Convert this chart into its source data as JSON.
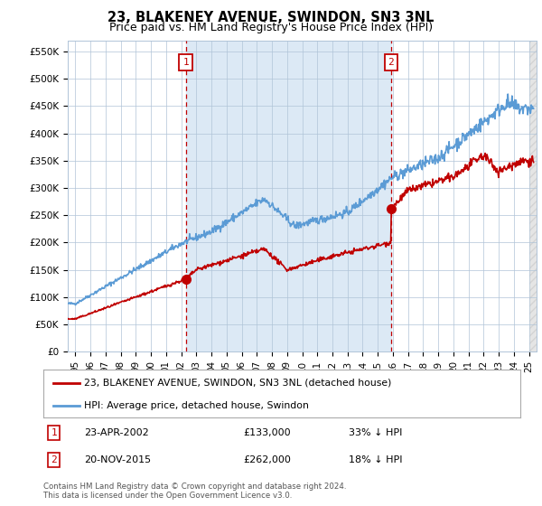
{
  "title": "23, BLAKENEY AVENUE, SWINDON, SN3 3NL",
  "subtitle": "Price paid vs. HM Land Registry's House Price Index (HPI)",
  "title_fontsize": 10.5,
  "subtitle_fontsize": 9,
  "ylim": [
    0,
    570000
  ],
  "yticks": [
    0,
    50000,
    100000,
    150000,
    200000,
    250000,
    300000,
    350000,
    400000,
    450000,
    500000,
    550000
  ],
  "ytick_labels": [
    "£0",
    "£50K",
    "£100K",
    "£150K",
    "£200K",
    "£250K",
    "£300K",
    "£350K",
    "£400K",
    "£450K",
    "£500K",
    "£550K"
  ],
  "hpi_color": "#5b9bd5",
  "sale_color": "#c00000",
  "vline_color": "#c00000",
  "bg_fill_color": "#dce9f5",
  "background_color": "#ffffff",
  "grid_color": "#b0c4d8",
  "legend1_label": "23, BLAKENEY AVENUE, SWINDON, SN3 3NL (detached house)",
  "legend2_label": "HPI: Average price, detached house, Swindon",
  "footnote": "Contains HM Land Registry data © Crown copyright and database right 2024.\nThis data is licensed under the Open Government Licence v3.0.",
  "sale1_x": 2002.3,
  "sale1_y": 133000,
  "sale2_x": 2015.88,
  "sale2_y": 262000,
  "xlim_start": 1994.5,
  "xlim_end": 2025.5,
  "hatch_start": 2025.0
}
